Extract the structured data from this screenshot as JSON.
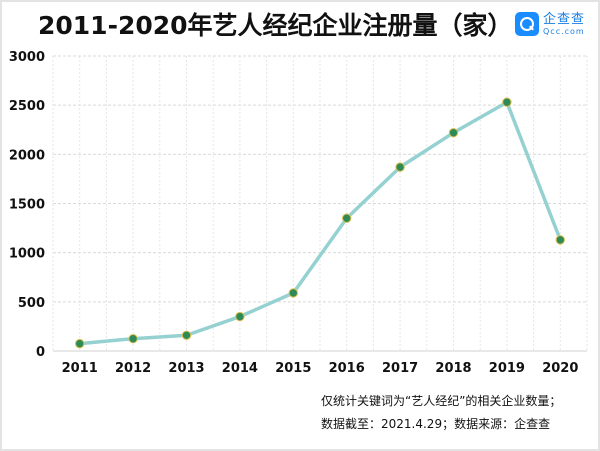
{
  "header": {
    "title": "2011-2020年艺人经纪企业注册量（家）",
    "logo_cn": "企查查",
    "logo_en": "Qcc.com"
  },
  "footer": {
    "note_line1": "仅统计关键词为“艺人经纪”的相关企业数量；",
    "note_line2": "数据截至：2021.4.29；数据来源：企查查"
  },
  "colors": {
    "line": "#94d1d0",
    "marker_fill": "#2e8b57",
    "marker_stroke": "#e0c050",
    "grid": "#d9d9d9"
  },
  "chart_data": {
    "type": "line",
    "title": "2011-2020年艺人经纪企业注册量（家）",
    "xlabel": "",
    "ylabel": "",
    "categories": [
      "2011",
      "2012",
      "2013",
      "2014",
      "2015",
      "2016",
      "2017",
      "2018",
      "2019",
      "2020"
    ],
    "series": [
      {
        "name": "艺人经纪企业注册量",
        "values": [
          75,
          125,
          160,
          350,
          590,
          1350,
          1870,
          2220,
          2530,
          1130
        ]
      }
    ],
    "yticks": [
      0,
      500,
      1000,
      1500,
      2000,
      2500,
      3000
    ],
    "ylim": [
      0,
      3000
    ],
    "grid": true,
    "legend": "none"
  }
}
